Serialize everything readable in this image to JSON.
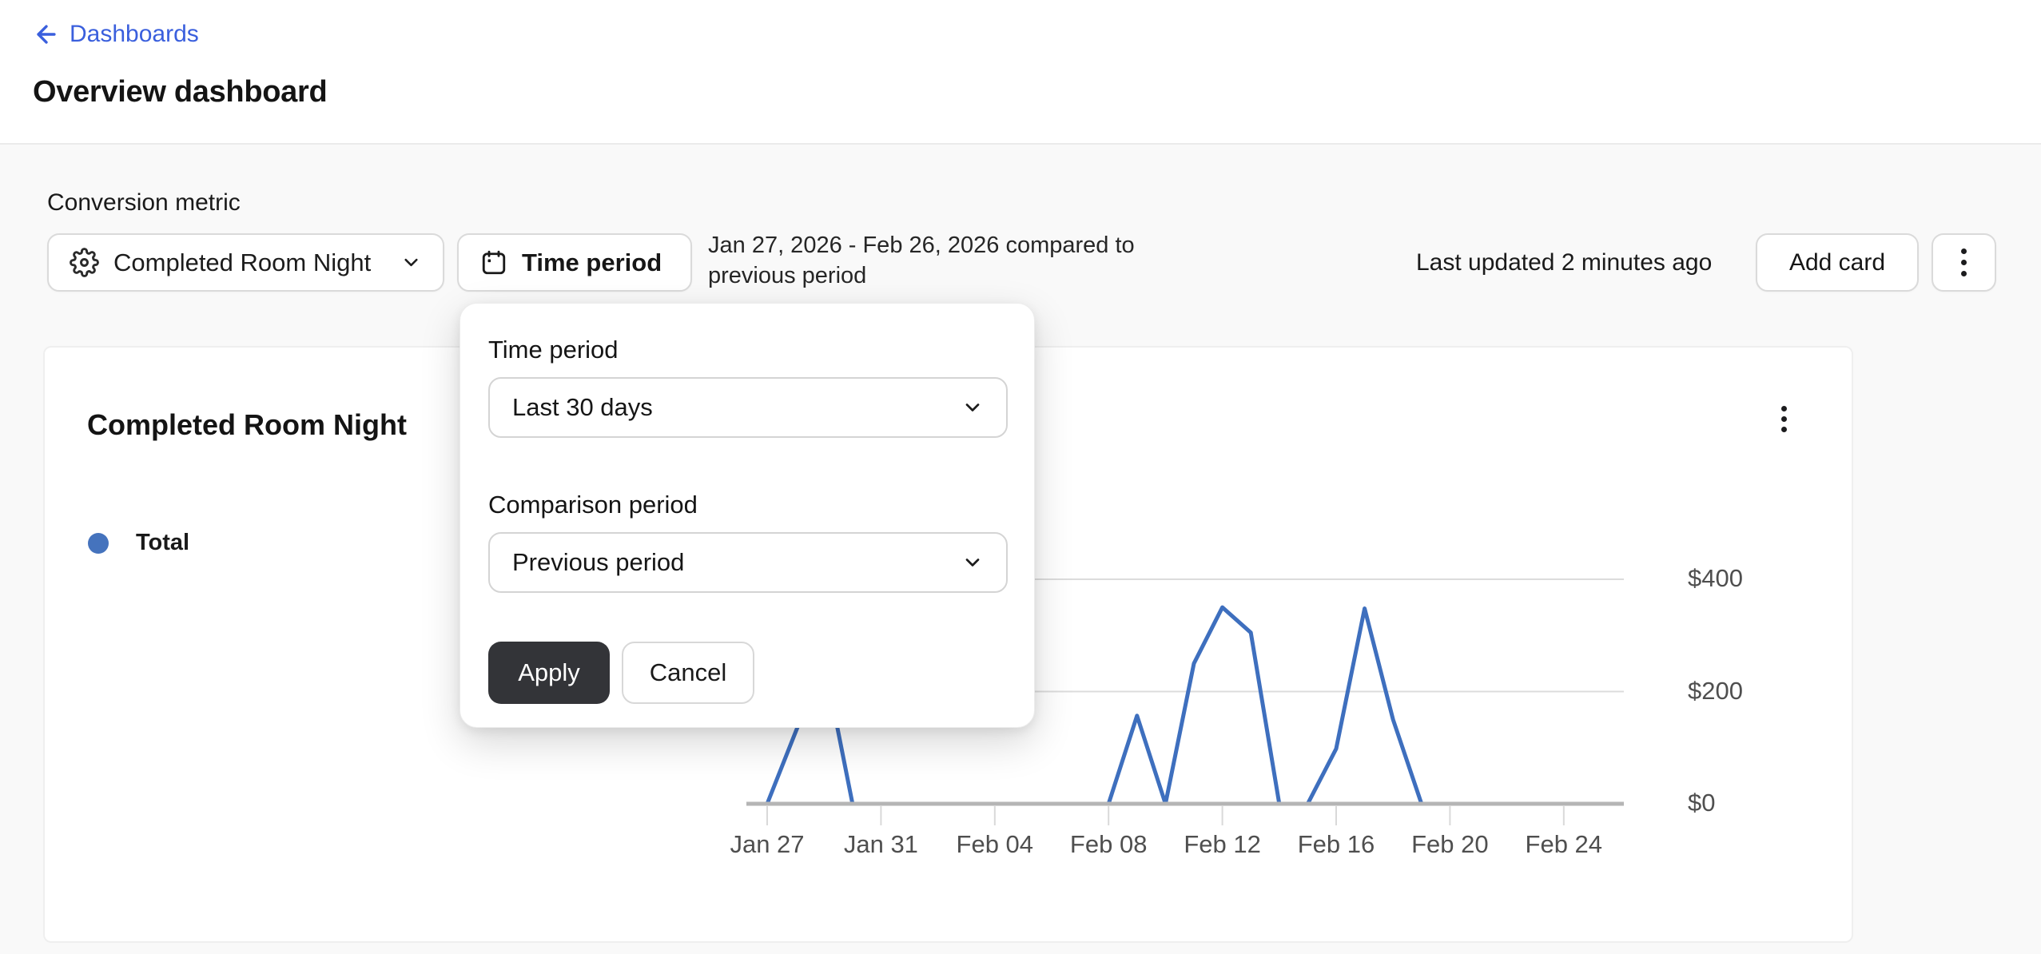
{
  "page": {
    "breadcrumb": "Dashboards",
    "title": "Overview dashboard"
  },
  "toolbar": {
    "conversion_metric_label": "Conversion metric",
    "metric_button_label": "Completed Room Night",
    "time_period_button_label": "Time period",
    "date_range_line1": "Jan 27, 2026 - Feb 26, 2026 compared to",
    "date_range_line2": "previous period",
    "last_updated": "Last updated 2 minutes ago",
    "add_card_label": "Add card",
    "more_menu_icon": "kebab-vertical-dots"
  },
  "popover": {
    "time_period_label": "Time period",
    "time_period_value": "Last 30 days",
    "comparison_label": "Comparison period",
    "comparison_value": "Previous period",
    "apply_label": "Apply",
    "cancel_label": "Cancel"
  },
  "card": {
    "title": "Completed Room Night",
    "legend": {
      "label": "Total",
      "color": "#4573bd"
    }
  },
  "colors": {
    "link_blue": "#3a5fdd",
    "line_blue": "#3e6fbe",
    "legend_dot": "#4573bd",
    "apply_button_bg": "#333438",
    "gridline": "#dcdcdc",
    "axis_baseline": "#b5b5b5",
    "axis_tick": "#d9d9d9",
    "axis_text": "#4f4f4f",
    "page_bg": "#f9f9f9"
  },
  "chart_data": {
    "type": "line",
    "title": "Completed Room Night",
    "ylabel": "USD",
    "ylim": [
      0,
      400
    ],
    "grid": true,
    "legend_position": "left",
    "dates": [
      "Jan 27",
      "Jan 28",
      "Jan 29",
      "Jan 30",
      "Jan 31",
      "Feb 01",
      "Feb 02",
      "Feb 03",
      "Feb 04",
      "Feb 05",
      "Feb 06",
      "Feb 07",
      "Feb 08",
      "Feb 09",
      "Feb 10",
      "Feb 11",
      "Feb 12",
      "Feb 13",
      "Feb 14",
      "Feb 15",
      "Feb 16",
      "Feb 17",
      "Feb 18",
      "Feb 19",
      "Feb 20",
      "Feb 21",
      "Feb 22",
      "Feb 23",
      "Feb 24",
      "Feb 25",
      "Feb 26"
    ],
    "series": [
      {
        "name": "Total",
        "color": "#3e6fbe",
        "values": [
          0,
          128,
          255,
          0,
          0,
          0,
          0,
          0,
          0,
          0,
          0,
          0,
          0,
          157,
          0,
          250,
          350,
          305,
          0,
          0,
          98,
          348,
          150,
          0,
          0,
          0,
          0,
          0,
          0,
          0,
          0
        ]
      }
    ],
    "x_ticks": [
      {
        "label": "Jan 27",
        "index": 0
      },
      {
        "label": "Jan 31",
        "index": 4
      },
      {
        "label": "Feb 04",
        "index": 8
      },
      {
        "label": "Feb 08",
        "index": 12
      },
      {
        "label": "Feb 12",
        "index": 16
      },
      {
        "label": "Feb 16",
        "index": 20
      },
      {
        "label": "Feb 20",
        "index": 24
      },
      {
        "label": "Feb 24",
        "index": 28
      }
    ],
    "y_ticks": [
      {
        "label": "$0",
        "value": 0
      },
      {
        "label": "$200",
        "value": 200
      },
      {
        "label": "$400",
        "value": 400
      }
    ]
  }
}
